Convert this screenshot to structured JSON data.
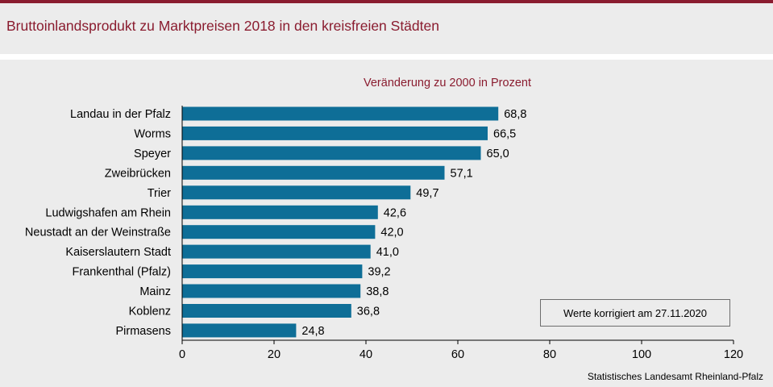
{
  "header": {
    "title": "Bruttoinlandsprodukt zu Marktpreisen 2018 in den kreisfreien Städten"
  },
  "note": "Werte korrigiert am 27.11.2020",
  "source": "Statistisches Landesamt  Rheinland-Pfalz",
  "colors": {
    "bar": "#0e6e97",
    "title": "#8a1c2f",
    "background": "#ececec"
  },
  "chart_data": {
    "type": "bar",
    "orientation": "horizontal",
    "title": "Veränderung  zu 2000 in Prozent",
    "categories": [
      "Landau in der Pfalz",
      "Worms",
      "Speyer",
      "Zweibrücken",
      "Trier",
      "Ludwigshafen am Rhein",
      "Neustadt an der Weinstraße",
      "Kaiserslautern Stadt",
      "Frankenthal (Pfalz)",
      "Mainz",
      "Koblenz",
      "Pirmasens"
    ],
    "values": [
      68.8,
      66.5,
      65.0,
      57.1,
      49.7,
      42.6,
      42.0,
      41.0,
      39.2,
      38.8,
      36.8,
      24.8
    ],
    "value_labels": [
      "68,8",
      "66,5",
      "65,0",
      "57,1",
      "49,7",
      "42,6",
      "42,0",
      "41,0",
      "39,2",
      "38,8",
      "36,8",
      "24,8"
    ],
    "xlim": [
      0,
      120
    ],
    "xticks": [
      0,
      20,
      40,
      60,
      80,
      100,
      120
    ],
    "xlabel": "",
    "ylabel": "",
    "grid": false
  }
}
